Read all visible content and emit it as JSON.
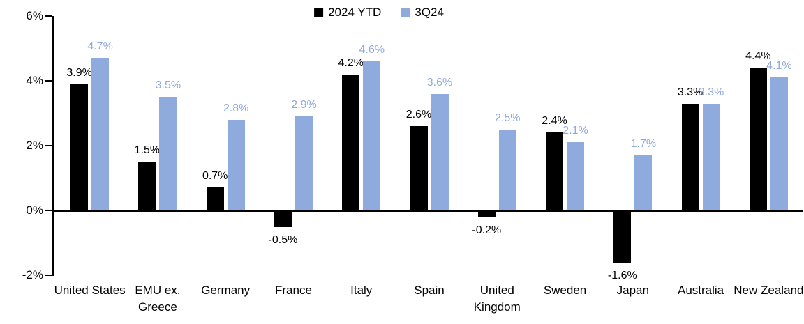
{
  "colors": {
    "series1": "#000000",
    "series2": "#8FAADC",
    "axis": "#000000",
    "background": "#FFFFFF"
  },
  "chart_data": {
    "type": "bar",
    "title": "",
    "xlabel": "",
    "ylabel": "",
    "categories": [
      "United States",
      "EMU ex. Greece",
      "Germany",
      "France",
      "Italy",
      "Spain",
      "United Kingdom",
      "Sweden",
      "Japan",
      "Australia",
      "New Zealand"
    ],
    "series": [
      {
        "name": "2024 YTD",
        "color": "#000000",
        "values": [
          3.9,
          1.5,
          0.7,
          -0.5,
          4.2,
          2.6,
          -0.2,
          2.4,
          -1.6,
          3.3,
          4.4
        ],
        "labels": [
          "3.9%",
          "1.5%",
          "0.7%",
          "-0.5%",
          "4.2%",
          "2.6%",
          "-0.2%",
          "2.4%",
          "-1.6%",
          "3.3%",
          "4.4%"
        ]
      },
      {
        "name": "3Q24",
        "color": "#8FAADC",
        "values": [
          4.7,
          3.5,
          2.8,
          2.9,
          4.6,
          3.6,
          2.5,
          2.1,
          1.7,
          3.3,
          4.1
        ],
        "labels": [
          "4.7%",
          "3.5%",
          "2.8%",
          "2.9%",
          "4.6%",
          "3.6%",
          "2.5%",
          "2.1%",
          "1.7%",
          "3.3%",
          "4.1%"
        ]
      }
    ],
    "y_ticks": [
      {
        "value": 6,
        "label": "6%"
      },
      {
        "value": 4,
        "label": "4%"
      },
      {
        "value": 2,
        "label": "2%"
      },
      {
        "value": 0,
        "label": "0%"
      },
      {
        "value": -2,
        "label": "-2%"
      }
    ],
    "ylim": [
      -2,
      6
    ],
    "grid": false,
    "legend_position": "top-center"
  }
}
